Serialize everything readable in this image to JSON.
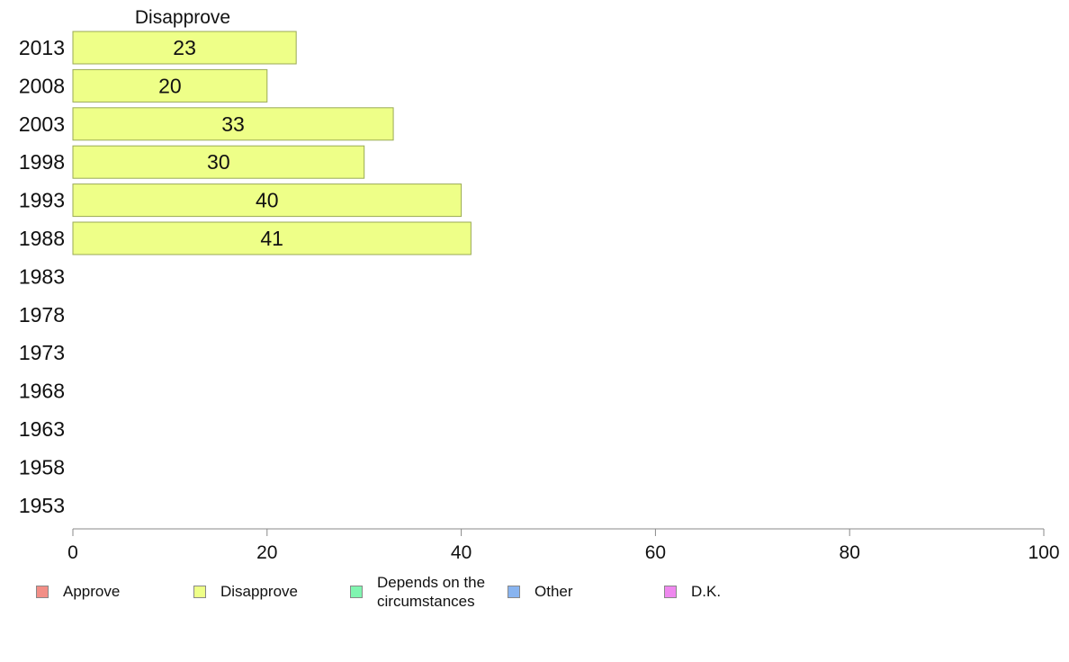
{
  "chart_data": {
    "type": "bar",
    "orientation": "horizontal",
    "title": "Disapprove",
    "categories": [
      "2013",
      "2008",
      "2003",
      "1998",
      "1993",
      "1988",
      "1983",
      "1978",
      "1973",
      "1968",
      "1963",
      "1958",
      "1953"
    ],
    "series": [
      {
        "name": "Disapprove",
        "values": [
          23,
          20,
          33,
          30,
          40,
          41,
          null,
          null,
          null,
          null,
          null,
          null,
          null
        ],
        "data_labels": [
          "23",
          "20",
          "33",
          "30",
          "40",
          "41",
          "",
          "",
          "",
          "",
          "",
          "",
          ""
        ]
      }
    ],
    "xlim": [
      0,
      100
    ],
    "xticks": [
      "0",
      "20",
      "40",
      "60",
      "80",
      "100"
    ],
    "grid": false,
    "legend_position": "bottom",
    "legend": [
      {
        "label": "Approve",
        "color": "#f28e86"
      },
      {
        "label": "Disapprove",
        "color": "#eeff88"
      },
      {
        "label": "Depends on the circumstances",
        "color": "#80f5b0"
      },
      {
        "label": "Other",
        "color": "#88b4f0"
      },
      {
        "label": "D.K.",
        "color": "#ee88ee"
      }
    ],
    "bar_color": "#eeff88",
    "bar_border_color": "#9aaa55"
  }
}
